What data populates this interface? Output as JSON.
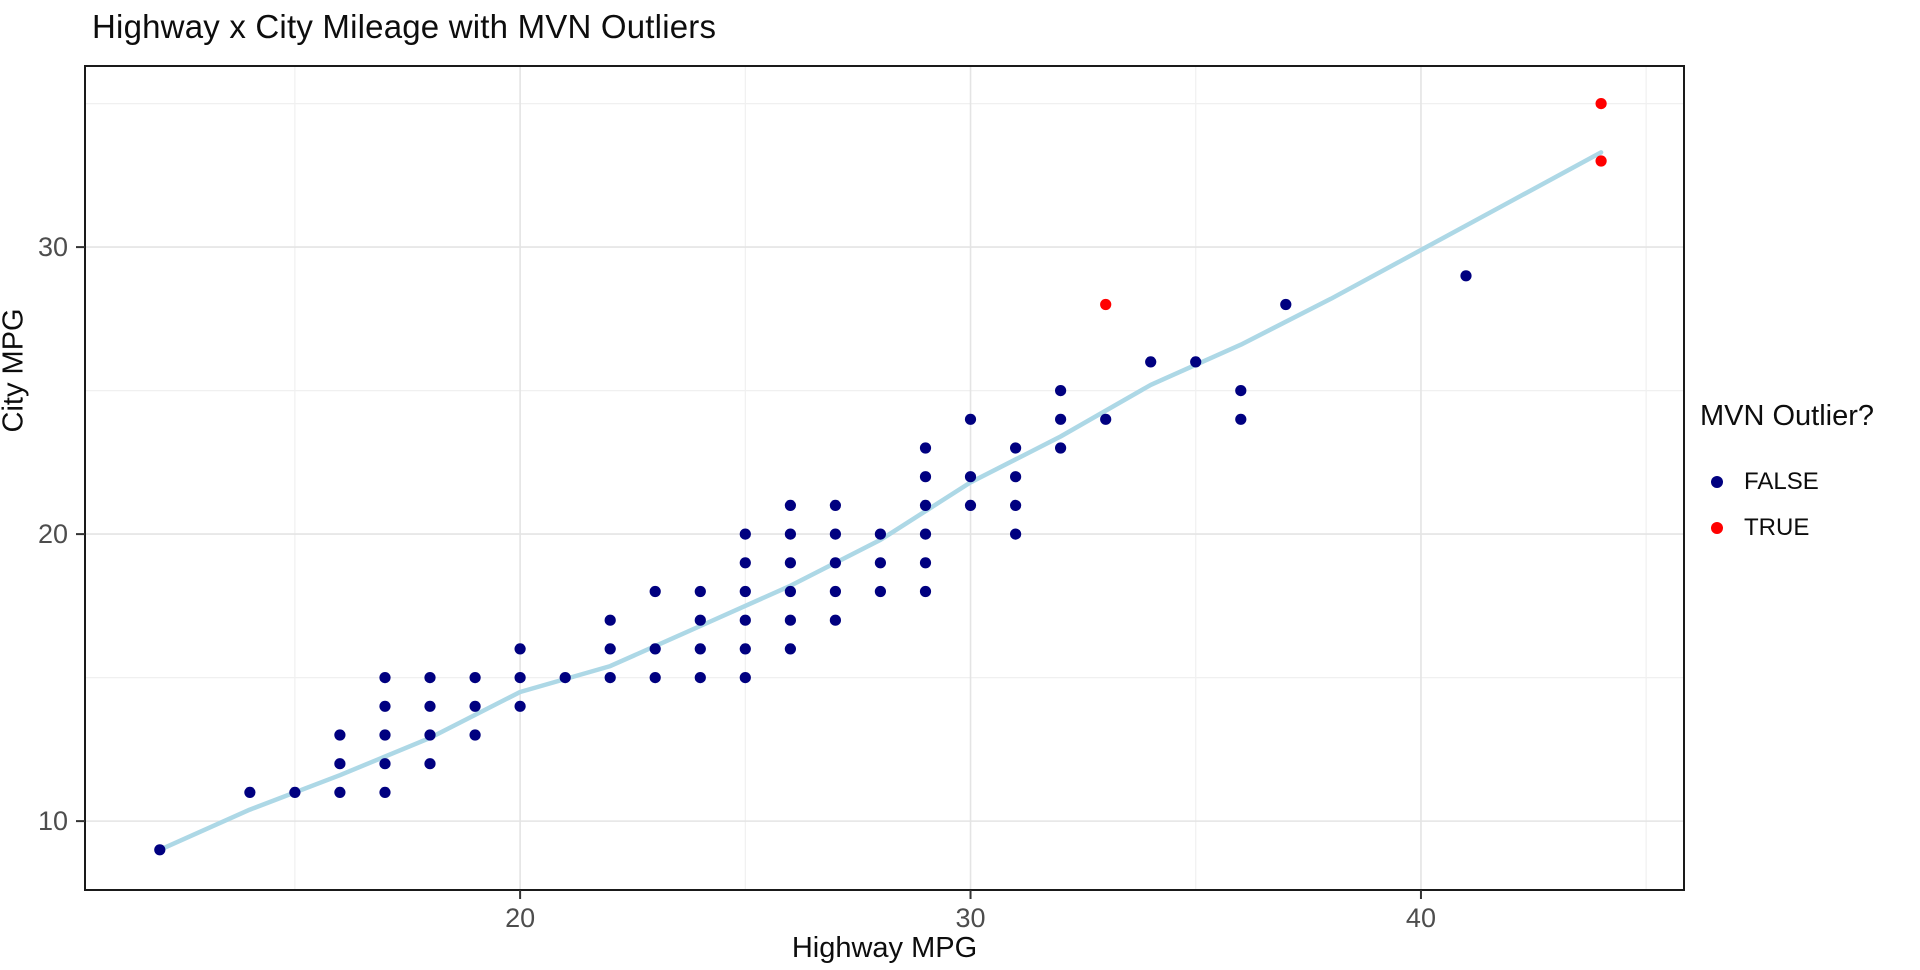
{
  "chart": {
    "title": "Highway x City Mileage with MVN Outliers",
    "xlabel": "Highway MPG",
    "ylabel": "City MPG",
    "legend": {
      "title": "MVN Outlier?",
      "items": [
        {
          "label": "FALSE",
          "color": "#000080"
        },
        {
          "label": "TRUE",
          "color": "#ff0000"
        }
      ]
    }
  },
  "chart_data": {
    "type": "scatter",
    "title": "Highway x City Mileage with MVN Outliers",
    "xlabel": "Highway MPG",
    "ylabel": "City MPG",
    "xlim": [
      10.34,
      45.84
    ],
    "ylim": [
      7.6,
      36.31
    ],
    "x_major_ticks": [
      20,
      30,
      40
    ],
    "y_major_ticks": [
      10,
      20,
      30
    ],
    "x_minor_ticks": [
      15,
      25,
      35,
      45
    ],
    "y_minor_ticks": [
      15,
      25,
      35
    ],
    "grid": true,
    "legend_position": "right",
    "colors": {
      "false_points": "#000080",
      "true_points": "#ff0000",
      "trend_line": "#ADD8E6",
      "major_grid": "#e4e4e4",
      "minor_grid": "#f0f0f0",
      "panel_border": "#1a1a1a",
      "tick_text": "#4d4d4d"
    },
    "series": [
      {
        "name": "FALSE",
        "color": "#000080",
        "points": [
          [
            12,
            9
          ],
          [
            14,
            11
          ],
          [
            15,
            11
          ],
          [
            16,
            11
          ],
          [
            16,
            12
          ],
          [
            16,
            13
          ],
          [
            17,
            11
          ],
          [
            17,
            12
          ],
          [
            17,
            13
          ],
          [
            17,
            14
          ],
          [
            17,
            15
          ],
          [
            18,
            12
          ],
          [
            18,
            13
          ],
          [
            18,
            14
          ],
          [
            18,
            15
          ],
          [
            19,
            13
          ],
          [
            19,
            14
          ],
          [
            19,
            15
          ],
          [
            20,
            14
          ],
          [
            20,
            15
          ],
          [
            20,
            16
          ],
          [
            21,
            15
          ],
          [
            22,
            15
          ],
          [
            22,
            16
          ],
          [
            22,
            17
          ],
          [
            23,
            15
          ],
          [
            23,
            16
          ],
          [
            23,
            18
          ],
          [
            24,
            15
          ],
          [
            24,
            16
          ],
          [
            24,
            17
          ],
          [
            24,
            18
          ],
          [
            25,
            15
          ],
          [
            25,
            16
          ],
          [
            25,
            17
          ],
          [
            25,
            18
          ],
          [
            25,
            19
          ],
          [
            25,
            20
          ],
          [
            26,
            16
          ],
          [
            26,
            17
          ],
          [
            26,
            18
          ],
          [
            26,
            19
          ],
          [
            26,
            20
          ],
          [
            26,
            21
          ],
          [
            27,
            17
          ],
          [
            27,
            18
          ],
          [
            27,
            19
          ],
          [
            27,
            20
          ],
          [
            27,
            21
          ],
          [
            28,
            18
          ],
          [
            28,
            19
          ],
          [
            28,
            20
          ],
          [
            29,
            18
          ],
          [
            29,
            19
          ],
          [
            29,
            20
          ],
          [
            29,
            21
          ],
          [
            29,
            22
          ],
          [
            29,
            23
          ],
          [
            30,
            21
          ],
          [
            30,
            22
          ],
          [
            30,
            24
          ],
          [
            31,
            20
          ],
          [
            31,
            21
          ],
          [
            31,
            22
          ],
          [
            31,
            23
          ],
          [
            32,
            23
          ],
          [
            32,
            24
          ],
          [
            32,
            25
          ],
          [
            33,
            24
          ],
          [
            34,
            26
          ],
          [
            35,
            26
          ],
          [
            36,
            24
          ],
          [
            36,
            25
          ],
          [
            37,
            28
          ],
          [
            41,
            29
          ]
        ]
      },
      {
        "name": "TRUE",
        "color": "#ff0000",
        "points": [
          [
            33,
            28
          ],
          [
            44,
            33
          ],
          [
            44,
            35
          ]
        ]
      }
    ],
    "trend": {
      "name": "loess-smooth",
      "color": "#ADD8E6",
      "width": 4.5,
      "points": [
        [
          12,
          9.0
        ],
        [
          14,
          10.4
        ],
        [
          16,
          11.6
        ],
        [
          18,
          12.9
        ],
        [
          20,
          14.5
        ],
        [
          22,
          15.4
        ],
        [
          24,
          16.8
        ],
        [
          26,
          18.2
        ],
        [
          28,
          19.8
        ],
        [
          30,
          21.8
        ],
        [
          32,
          23.4
        ],
        [
          34,
          25.2
        ],
        [
          36,
          26.6
        ],
        [
          38,
          28.2
        ],
        [
          40,
          29.9
        ],
        [
          42,
          31.6
        ],
        [
          44,
          33.3
        ]
      ]
    }
  }
}
